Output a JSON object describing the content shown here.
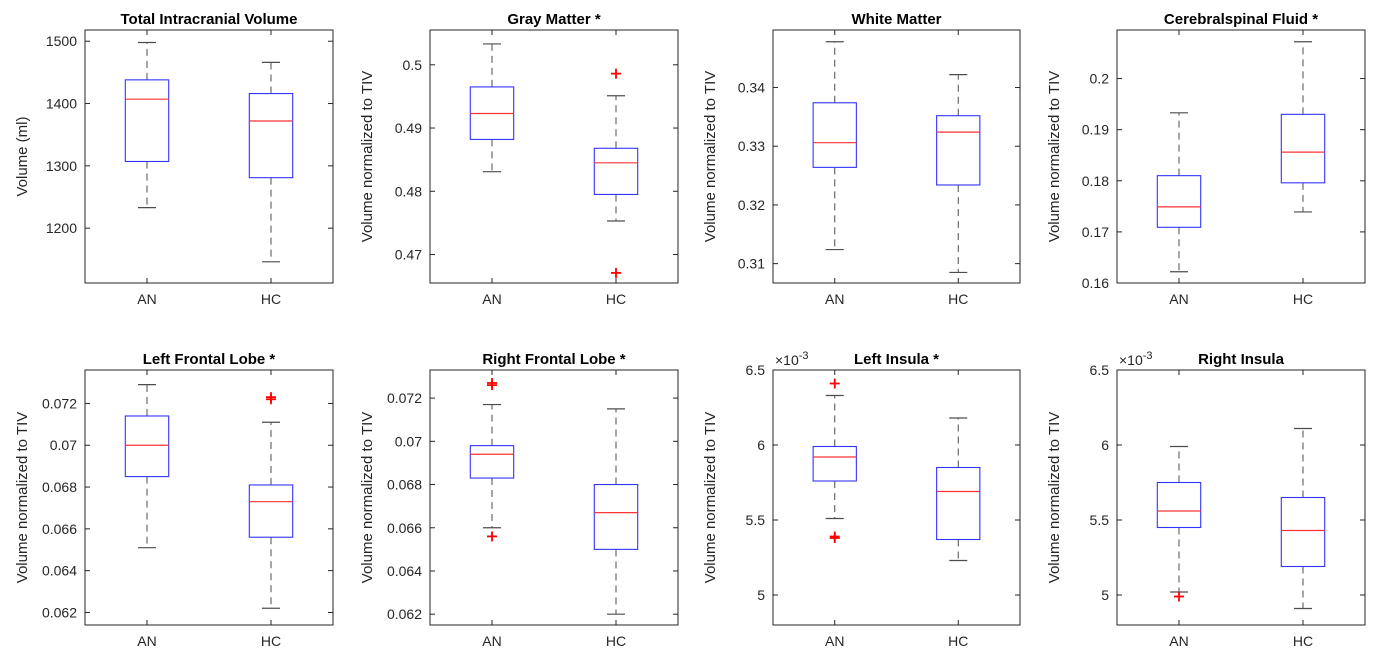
{
  "figure": {
    "background": "#ffffff"
  },
  "colors": {
    "box": "#3333ff",
    "median": "#ff3333",
    "whisker": "#4d4d4d",
    "outlier": "#ff0000",
    "axis": "#262626"
  },
  "chart_data": [
    {
      "type": "box",
      "title": "Total Intracranial Volume",
      "ylabel": "Volume (ml)",
      "ylim": [
        1112,
        1518
      ],
      "yticks": [
        1200,
        1300,
        1400,
        1500
      ],
      "ytick_labels": [
        "1200",
        "1300",
        "1400",
        "1500"
      ],
      "multiplier": "",
      "categories": [
        "AN",
        "HC"
      ],
      "boxes": [
        {
          "name": "AN",
          "q1": 1307,
          "median": 1407,
          "q3": 1438,
          "whisker_low": 1233,
          "whisker_high": 1498,
          "outliers": []
        },
        {
          "name": "HC",
          "q1": 1281,
          "median": 1372,
          "q3": 1416,
          "whisker_low": 1146,
          "whisker_high": 1466,
          "outliers": []
        }
      ]
    },
    {
      "type": "box",
      "title": "Gray Matter *",
      "ylabel": "Volume normalized to TIV",
      "ylim": [
        0.4655,
        0.5055
      ],
      "yticks": [
        0.47,
        0.48,
        0.49,
        0.5
      ],
      "ytick_labels": [
        "0.47",
        "0.48",
        "0.49",
        "0.5"
      ],
      "multiplier": "",
      "categories": [
        "AN",
        "HC"
      ],
      "boxes": [
        {
          "name": "AN",
          "q1": 0.4882,
          "median": 0.4923,
          "q3": 0.4965,
          "whisker_low": 0.4831,
          "whisker_high": 0.5033,
          "outliers": []
        },
        {
          "name": "HC",
          "q1": 0.4795,
          "median": 0.4845,
          "q3": 0.4868,
          "whisker_low": 0.4753,
          "whisker_high": 0.4951,
          "outliers": [
            0.4986,
            0.4671
          ]
        }
      ]
    },
    {
      "type": "box",
      "title": "White Matter",
      "ylabel": "Volume normalized to TIV",
      "ylim": [
        0.3067,
        0.3498
      ],
      "yticks": [
        0.31,
        0.32,
        0.33,
        0.34
      ],
      "ytick_labels": [
        "0.31",
        "0.32",
        "0.33",
        "0.34"
      ],
      "multiplier": "",
      "categories": [
        "AN",
        "HC"
      ],
      "boxes": [
        {
          "name": "AN",
          "q1": 0.3264,
          "median": 0.3306,
          "q3": 0.3374,
          "whisker_low": 0.3124,
          "whisker_high": 0.3478,
          "outliers": []
        },
        {
          "name": "HC",
          "q1": 0.3234,
          "median": 0.3324,
          "q3": 0.3352,
          "whisker_low": 0.3085,
          "whisker_high": 0.3422,
          "outliers": []
        }
      ]
    },
    {
      "type": "box",
      "title": "Cerebralspinal Fluid *",
      "ylabel": "Volume normalized to TIV",
      "ylim": [
        0.16,
        0.2095
      ],
      "yticks": [
        0.16,
        0.17,
        0.18,
        0.19,
        0.2
      ],
      "ytick_labels": [
        "0.16",
        "0.17",
        "0.18",
        "0.19",
        "0.2"
      ],
      "multiplier": "",
      "categories": [
        "AN",
        "HC"
      ],
      "boxes": [
        {
          "name": "AN",
          "q1": 0.1709,
          "median": 0.1749,
          "q3": 0.181,
          "whisker_low": 0.1622,
          "whisker_high": 0.1933,
          "outliers": []
        },
        {
          "name": "HC",
          "q1": 0.1796,
          "median": 0.1856,
          "q3": 0.193,
          "whisker_low": 0.1739,
          "whisker_high": 0.2072,
          "outliers": []
        }
      ]
    },
    {
      "type": "box",
      "title": "Left Frontal Lobe *",
      "ylabel": "Volume normalized to TIV",
      "ylim": [
        0.0614,
        0.0736
      ],
      "yticks": [
        0.062,
        0.064,
        0.066,
        0.068,
        0.07,
        0.072
      ],
      "ytick_labels": [
        "0.062",
        "0.064",
        "0.066",
        "0.068",
        "0.07",
        "0.072"
      ],
      "multiplier": "",
      "categories": [
        "AN",
        "HC"
      ],
      "boxes": [
        {
          "name": "AN",
          "q1": 0.0685,
          "median": 0.07,
          "q3": 0.0714,
          "whisker_low": 0.0651,
          "whisker_high": 0.0729,
          "outliers": []
        },
        {
          "name": "HC",
          "q1": 0.0656,
          "median": 0.0673,
          "q3": 0.0681,
          "whisker_low": 0.0622,
          "whisker_high": 0.0711,
          "outliers": [
            0.0722,
            0.0723
          ]
        }
      ]
    },
    {
      "type": "box",
      "title": "Right Frontal Lobe *",
      "ylabel": "Volume normalized to TIV",
      "ylim": [
        0.0615,
        0.0733
      ],
      "yticks": [
        0.062,
        0.064,
        0.066,
        0.068,
        0.07,
        0.072
      ],
      "ytick_labels": [
        "0.062",
        "0.064",
        "0.066",
        "0.068",
        "0.07",
        "0.072"
      ],
      "multiplier": "",
      "categories": [
        "AN",
        "HC"
      ],
      "boxes": [
        {
          "name": "AN",
          "q1": 0.0683,
          "median": 0.0694,
          "q3": 0.0698,
          "whisker_low": 0.066,
          "whisker_high": 0.0717,
          "outliers": [
            0.0726,
            0.0727,
            0.0656
          ]
        },
        {
          "name": "HC",
          "q1": 0.065,
          "median": 0.0667,
          "q3": 0.068,
          "whisker_low": 0.062,
          "whisker_high": 0.0715,
          "outliers": []
        }
      ]
    },
    {
      "type": "box",
      "title": "Left Insula  *",
      "ylabel": "Volume normalized to TIV",
      "ylim": [
        0.0048,
        0.0065
      ],
      "yticks": [
        0.005,
        0.0055,
        0.006,
        0.0065
      ],
      "ytick_labels": [
        "5",
        "5.5",
        "6",
        "6.5"
      ],
      "multiplier": "×10",
      "multiplier_exp": "-3",
      "categories": [
        "AN",
        "HC"
      ],
      "boxes": [
        {
          "name": "AN",
          "q1": 0.00576,
          "median": 0.00592,
          "q3": 0.00599,
          "whisker_low": 0.00551,
          "whisker_high": 0.00633,
          "outliers": [
            0.00641,
            0.00539,
            0.00538
          ]
        },
        {
          "name": "HC",
          "q1": 0.00537,
          "median": 0.00569,
          "q3": 0.00585,
          "whisker_low": 0.00523,
          "whisker_high": 0.00618,
          "outliers": []
        }
      ]
    },
    {
      "type": "box",
      "title": "Right Insula",
      "ylabel": "Volume normalized to TIV",
      "ylim": [
        0.0048,
        0.0065
      ],
      "yticks": [
        0.005,
        0.0055,
        0.006,
        0.0065
      ],
      "ytick_labels": [
        "5",
        "5.5",
        "6",
        "6.5"
      ],
      "multiplier": "×10",
      "multiplier_exp": "-3",
      "categories": [
        "AN",
        "HC"
      ],
      "boxes": [
        {
          "name": "AN",
          "q1": 0.00545,
          "median": 0.00556,
          "q3": 0.00575,
          "whisker_low": 0.00502,
          "whisker_high": 0.00599,
          "outliers": [
            0.00499
          ]
        },
        {
          "name": "HC",
          "q1": 0.00519,
          "median": 0.00543,
          "q3": 0.00565,
          "whisker_low": 0.00491,
          "whisker_high": 0.00611,
          "outliers": []
        }
      ]
    }
  ]
}
